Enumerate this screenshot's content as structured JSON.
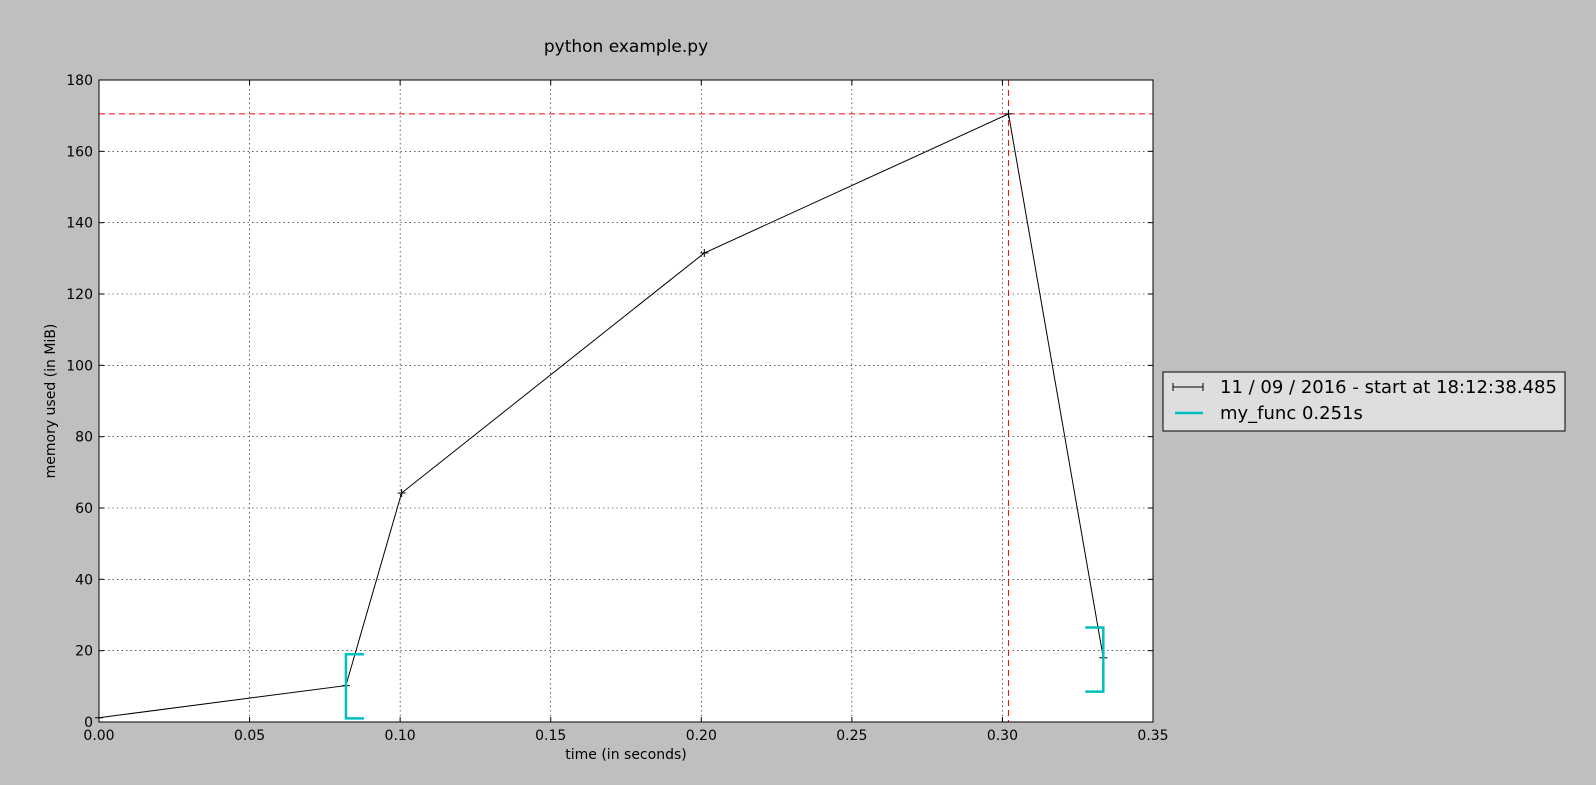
{
  "chart_data": {
    "type": "line",
    "title": "python example.py",
    "xlabel": "time (in seconds)",
    "ylabel": "memory used (in MiB)",
    "xlim": [
      0,
      0.35
    ],
    "ylim": [
      0,
      180
    ],
    "xticks": [
      0,
      0.05,
      0.1,
      0.15,
      0.2,
      0.25,
      0.3,
      0.35
    ],
    "xtick_labels": [
      "0.00",
      "0.05",
      "0.10",
      "0.15",
      "0.20",
      "0.25",
      "0.30",
      "0.35"
    ],
    "yticks": [
      0,
      20,
      40,
      60,
      80,
      100,
      120,
      140,
      160,
      180
    ],
    "ytick_labels": [
      "0",
      "20",
      "40",
      "60",
      "80",
      "100",
      "120",
      "140",
      "160",
      "180"
    ],
    "grid": true,
    "legend_position": "right",
    "series": [
      {
        "name": "11 / 09 / 2016 - start at 18:12:38.485",
        "color": "#000000",
        "marker": "+",
        "x": [
          0.0,
          0.082,
          0.1005,
          0.201,
          0.302,
          0.3335
        ],
        "y": [
          1.2,
          10.2,
          64.2,
          131.5,
          170.5,
          18.0
        ]
      }
    ],
    "function_markers": [
      {
        "name": "my_func 0.251s",
        "color": "#00bfbf",
        "start": {
          "x": 0.082,
          "y_low": 1.0,
          "y_high": 19.0
        },
        "end": {
          "x": 0.3335,
          "y_low": 8.5,
          "y_high": 26.5
        }
      }
    ],
    "max_lines": {
      "color": "#ff0000",
      "x": 0.302,
      "y": 170.5,
      "style": "dashed"
    }
  }
}
